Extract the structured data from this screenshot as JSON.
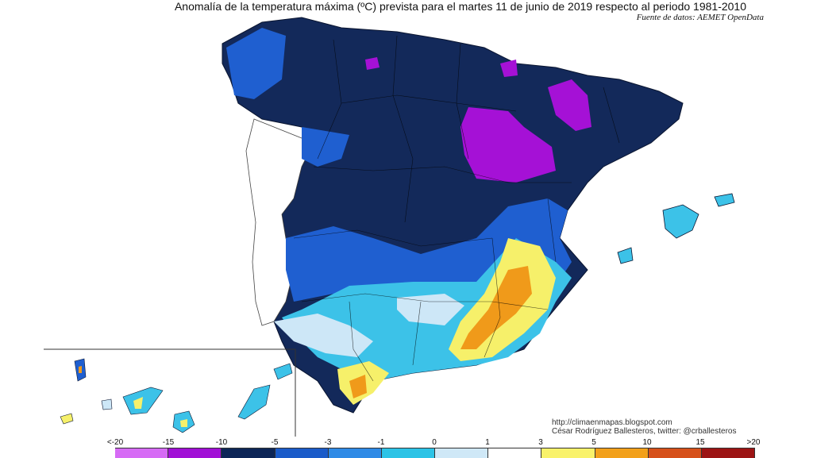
{
  "title": "Anomalía de la temperatura máxima (ºC) prevista para el martes 11 de junio de 2019 respecto al periodo 1981-2010",
  "source": "Fuente de datos: AEMET OpenData",
  "credits": {
    "url": "http://climaenmapas.blogspot.com",
    "author": "César Rodríguez Ballesteros, twitter: @crballesteros"
  },
  "legend": {
    "labels": [
      "<-20",
      "-15",
      "-10",
      "-5",
      "-3",
      "-1",
      "0",
      "1",
      "3",
      "5",
      "10",
      "15",
      ">20"
    ],
    "colors": [
      "#d66bf5",
      "#a10fd6",
      "#0d2657",
      "#1a5bc9",
      "#2e8ae6",
      "#2cc3e6",
      "#cfe8f7",
      "#ffffff",
      "#f9f26b",
      "#f2a01a",
      "#d6501a",
      "#9c1414",
      "#6e3e12"
    ]
  },
  "colors": {
    "dark_navy": "#13295a",
    "royal_blue": "#1f5fd0",
    "cyan": "#3cc2e8",
    "light_blue": "#cde7f7",
    "yellow": "#f6f06a",
    "orange": "#f09a1a",
    "purple": "#a511d6"
  }
}
